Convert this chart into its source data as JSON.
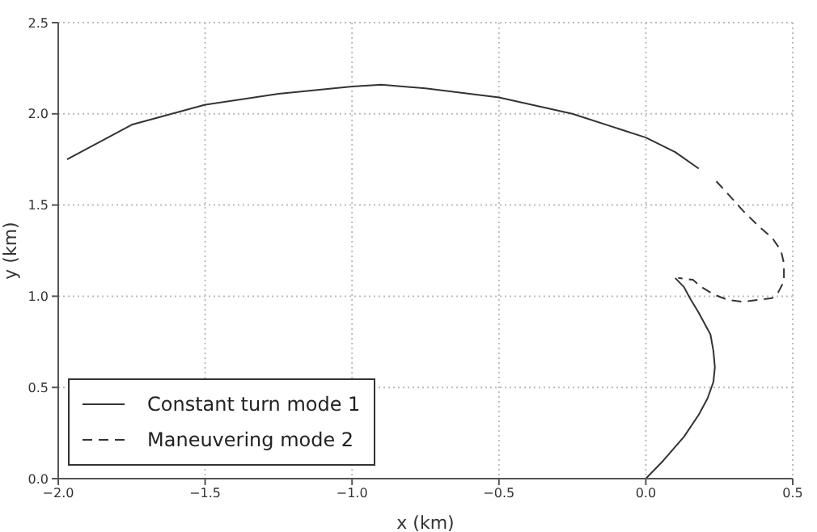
{
  "chart_data": {
    "type": "line",
    "xlabel": "x (km)",
    "ylabel": "y (km)",
    "xlim": [
      -2,
      0.5
    ],
    "ylim": [
      0,
      2.5
    ],
    "xticks": [
      {
        "value": -2,
        "label": "−2.0"
      },
      {
        "value": -1.5,
        "label": "−1.5"
      },
      {
        "value": -1,
        "label": "−1.0"
      },
      {
        "value": -0.5,
        "label": "−0.5"
      },
      {
        "value": 0,
        "label": "0.0"
      },
      {
        "value": 0.5,
        "label": "0.5"
      }
    ],
    "yticks": [
      {
        "value": 0,
        "label": "0.0"
      },
      {
        "value": 0.5,
        "label": "0.5"
      },
      {
        "value": 1,
        "label": "1.0"
      },
      {
        "value": 1.5,
        "label": "1.5"
      },
      {
        "value": 2,
        "label": "2.0"
      },
      {
        "value": 2.5,
        "label": "2.5"
      }
    ],
    "grid": true,
    "legend": "bottom left",
    "marker": "none",
    "series": [
      {
        "name": "Constant turn mode 1",
        "color": "#333333",
        "line_style": "solid",
        "x": [
          0,
          0.06,
          0.13,
          0.18,
          0.21,
          0.23,
          0.235,
          0.23,
          0.22,
          0.2,
          0.18,
          0.15,
          0.13,
          0.1,
          0.14,
          0.18,
          0.1,
          0,
          -0.25,
          -0.5,
          -0.75,
          -0.9,
          -1.0,
          -1.25,
          -1.5,
          -1.75,
          -1.97
        ],
        "values": [
          0,
          0.1,
          0.23,
          0.35,
          0.44,
          0.53,
          0.61,
          0.7,
          0.79,
          0.85,
          0.91,
          0.99,
          1.05,
          1.1,
          null,
          1.7,
          1.79,
          1.87,
          2.0,
          2.09,
          2.14,
          2.16,
          2.15,
          2.11,
          2.05,
          1.94,
          1.75
        ]
      },
      {
        "name": "Maneuvering mode 2",
        "color": "#333333",
        "line_style": "dashed",
        "x": [
          0.24,
          0.28,
          0.33,
          0.38,
          0.43,
          0.46,
          0.47,
          0.47,
          0.45,
          0.43,
          0.38,
          0.33,
          0.28,
          0.23,
          0.19,
          0.16,
          0.11
        ],
        "values": [
          1.63,
          1.56,
          1.47,
          1.39,
          1.32,
          1.25,
          1.18,
          1.08,
          1.02,
          0.99,
          0.98,
          0.97,
          0.98,
          1.01,
          1.05,
          1.09,
          1.1
        ]
      }
    ]
  }
}
